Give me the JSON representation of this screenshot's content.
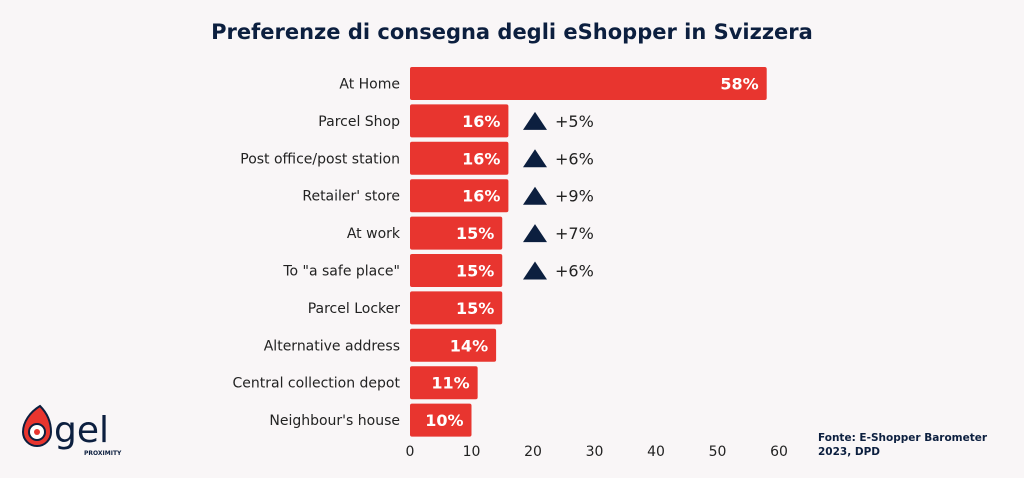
{
  "chart_data": {
    "type": "bar",
    "orientation": "horizontal",
    "title": "Preferenze di consegna degli eShopper in Svizzera",
    "categories": [
      "At Home",
      "Parcel Shop",
      "Post office/post station",
      "Retailer' store",
      "At work",
      "To \"a safe place\"",
      "Parcel Locker",
      "Alternative address",
      "Central collection depot",
      "Neighbour's house"
    ],
    "values": [
      58,
      16,
      16,
      16,
      15,
      15,
      15,
      14,
      11,
      10
    ],
    "data_labels": [
      "58%",
      "16%",
      "16%",
      "16%",
      "15%",
      "15%",
      "15%",
      "14%",
      "11%",
      "10%"
    ],
    "changes": [
      "",
      "+5%",
      "+6%",
      "+9%",
      "+7%",
      "+6%",
      "",
      "",
      "",
      ""
    ],
    "xlim": [
      0,
      60
    ],
    "xticks": [
      "0",
      "10",
      "20",
      "30",
      "40",
      "50",
      "60"
    ],
    "grid": false,
    "colors": {
      "bar": "#e8352f",
      "accent": "#0c1f3f"
    }
  },
  "source": "Fonte: E-Shopper Barometer 2023, DPD",
  "logo": {
    "text": "gel",
    "subtext": "PROXIMITY"
  }
}
